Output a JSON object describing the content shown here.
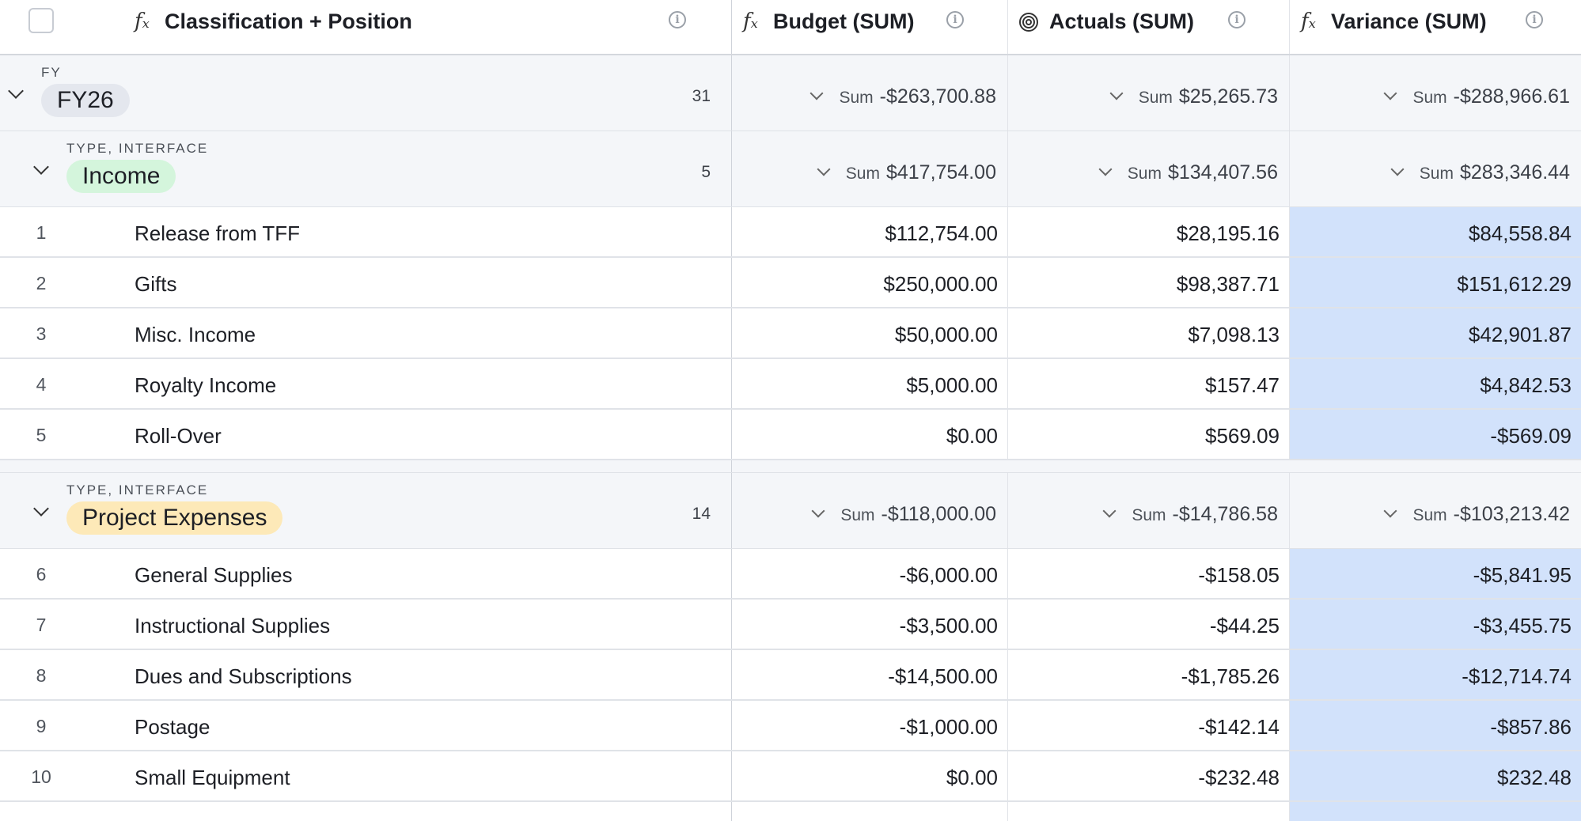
{
  "header": {
    "col1": "Classification + Position",
    "col2": "Budget (SUM)",
    "col3": "Actuals (SUM)",
    "col4": "Variance (SUM)",
    "formula_icon": "𝑓ₓ"
  },
  "fy_group": {
    "label": "FY",
    "value": "FY26",
    "count": "31",
    "sum_word": "Sum",
    "budget": "-$263,700.88",
    "actuals": "$25,265.73",
    "variance": "-$288,966.61"
  },
  "income_group": {
    "label": "TYPE, INTERFACE",
    "value": "Income",
    "count": "5",
    "sum_word": "Sum",
    "budget": "$417,754.00",
    "actuals": "$134,407.56",
    "variance": "$283,346.44",
    "pill_color": "#d4f5dc"
  },
  "income_rows": [
    {
      "num": "1",
      "name": "Release from TFF",
      "budget": "$112,754.00",
      "actuals": "$28,195.16",
      "variance": "$84,558.84"
    },
    {
      "num": "2",
      "name": "Gifts",
      "budget": "$250,000.00",
      "actuals": "$98,387.71",
      "variance": "$151,612.29"
    },
    {
      "num": "3",
      "name": "Misc. Income",
      "budget": "$50,000.00",
      "actuals": "$7,098.13",
      "variance": "$42,901.87"
    },
    {
      "num": "4",
      "name": "Royalty Income",
      "budget": "$5,000.00",
      "actuals": "$157.47",
      "variance": "$4,842.53"
    },
    {
      "num": "5",
      "name": "Roll-Over",
      "budget": "$0.00",
      "actuals": "$569.09",
      "variance": "-$569.09"
    }
  ],
  "expense_group": {
    "label": "TYPE, INTERFACE",
    "value": "Project Expenses",
    "count": "14",
    "sum_word": "Sum",
    "budget": "-$118,000.00",
    "actuals": "-$14,786.58",
    "variance": "-$103,213.42",
    "pill_color": "#fde9b8"
  },
  "expense_rows": [
    {
      "num": "6",
      "name": "General Supplies",
      "budget": "-$6,000.00",
      "actuals": "-$158.05",
      "variance": "-$5,841.95"
    },
    {
      "num": "7",
      "name": "Instructional Supplies",
      "budget": "-$3,500.00",
      "actuals": "-$44.25",
      "variance": "-$3,455.75"
    },
    {
      "num": "8",
      "name": "Dues and Subscriptions",
      "budget": "-$14,500.00",
      "actuals": "-$1,785.26",
      "variance": "-$12,714.74"
    },
    {
      "num": "9",
      "name": "Postage",
      "budget": "-$1,000.00",
      "actuals": "-$142.14",
      "variance": "-$857.86"
    },
    {
      "num": "10",
      "name": "Small Equipment",
      "budget": "$0.00",
      "actuals": "-$232.48",
      "variance": "$232.48"
    }
  ],
  "colors": {
    "variance_highlight": "#d2e2fb",
    "group_background": "#f4f6f9",
    "fy_pill": "#e4e7ee"
  }
}
